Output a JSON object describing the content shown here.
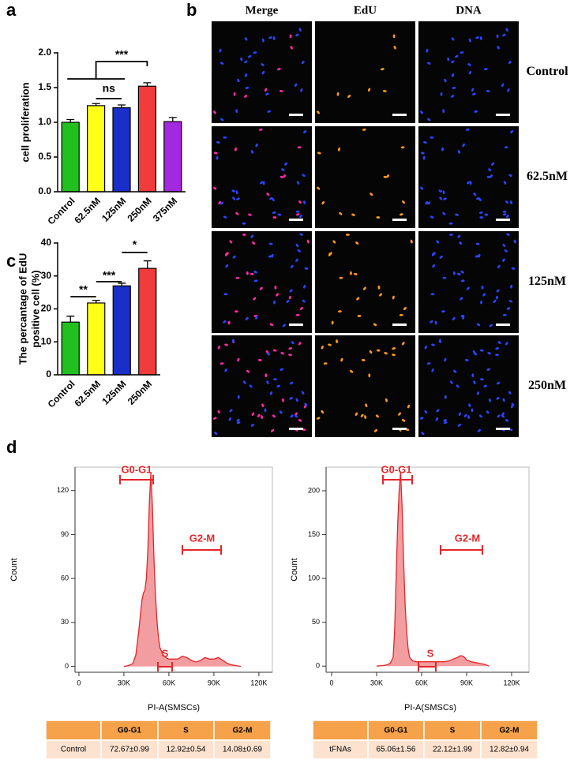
{
  "panel_labels": [
    "a",
    "b",
    "c",
    "d"
  ],
  "chart_data": [
    {
      "type": "bar",
      "ylabel": "cell proliferation",
      "categories": [
        "Control",
        "62.5nM",
        "125nM",
        "250nM",
        "375nM"
      ],
      "values": [
        1.0,
        1.24,
        1.21,
        1.52,
        1.01
      ],
      "errors": [
        0.04,
        0.03,
        0.04,
        0.05,
        0.06
      ],
      "colors": [
        "#22c01f",
        "#ffff17",
        "#1a2fc9",
        "#f23b3b",
        "#a329e0"
      ],
      "ylim": [
        0,
        2
      ],
      "yticks": [
        {
          "value": 0,
          "label": "0.0"
        },
        0.5,
        {
          "value": 1,
          "label": "1.0"
        },
        1.5,
        {
          "value": 2,
          "label": "2.0"
        }
      ],
      "annotations": [
        "***",
        "ns"
      ]
    },
    {
      "type": "bar",
      "ylabel": [
        "The percantage of EdU",
        "positive cell (%)"
      ],
      "categories": [
        "Control",
        "62.5nM",
        "125nM",
        "250nM"
      ],
      "values": [
        16,
        21.8,
        27,
        32.3
      ],
      "errors": [
        1.8,
        0.8,
        0.8,
        2.3
      ],
      "colors": [
        "#22c01f",
        "#ffff17",
        "#1a2fc9",
        "#f23b3b"
      ],
      "ylim": [
        0,
        40
      ],
      "yticks": [
        0,
        10,
        20,
        30,
        40
      ],
      "annotations": [
        "**",
        "***",
        "*"
      ]
    },
    {
      "type": "area",
      "xlabel": "PI-A(SMSCs)",
      "ylabel": "Count",
      "color": "#e3262a",
      "x": [
        30000,
        33000,
        36000,
        38000,
        40000,
        42000,
        43000,
        44000,
        45000,
        46000,
        47000,
        48000,
        49000,
        50000,
        51000,
        52000,
        53000,
        54000,
        56000,
        58000,
        60000,
        63000,
        66000,
        69000,
        72000,
        75000,
        78000,
        81000,
        84000,
        87000,
        90000,
        93000,
        96000,
        99000,
        102000,
        105000,
        108000
      ],
      "values": [
        0,
        0.5,
        2,
        8,
        25,
        45,
        50,
        52,
        60,
        80,
        112,
        132,
        110,
        75,
        50,
        32,
        20,
        13,
        8,
        6,
        5,
        5,
        5,
        7,
        6,
        4,
        3,
        4,
        6,
        5,
        5,
        6,
        4,
        2,
        1,
        0.5,
        0
      ],
      "xlim": [
        -2600,
        129000
      ],
      "ylim": [
        -4,
        136
      ],
      "xticks": [
        0,
        {
          "value": 30000,
          "label": "30K"
        },
        {
          "value": 60000,
          "label": "60K"
        },
        {
          "value": 90000,
          "label": "90K"
        },
        {
          "value": 120000,
          "label": "120K"
        }
      ],
      "yticks": [
        0,
        30,
        60,
        90,
        120
      ],
      "annotations": [
        "G0-G1",
        "S",
        "G2-M"
      ]
    },
    {
      "type": "area",
      "xlabel": "PI-A(SMSCs)",
      "ylabel": "Count",
      "color": "#e3262a",
      "x": [
        30000,
        36000,
        39000,
        41000,
        42000,
        43000,
        44000,
        45000,
        46000,
        47000,
        48000,
        49000,
        50000,
        51000,
        52000,
        54000,
        57000,
        60000,
        63000,
        66000,
        69000,
        72000,
        75000,
        78000,
        81000,
        84000,
        86000,
        88000,
        90000,
        93000,
        96000,
        99000,
        102000,
        105000
      ],
      "values": [
        0,
        1,
        3,
        10,
        40,
        100,
        160,
        200,
        222,
        180,
        120,
        70,
        40,
        20,
        10,
        6,
        5,
        5,
        5,
        5,
        5,
        5,
        5,
        6,
        8,
        10,
        12,
        11,
        7,
        5,
        4,
        3,
        2,
        0
      ],
      "xlim": [
        -3700,
        131600
      ],
      "ylim": [
        -7,
        227
      ],
      "xticks": [
        0,
        {
          "value": 30000,
          "label": "30K"
        },
        {
          "value": 60000,
          "label": "60K"
        },
        {
          "value": 90000,
          "label": "90K"
        },
        {
          "value": 120000,
          "label": "120K"
        }
      ],
      "yticks": [
        0,
        50,
        100,
        150,
        200
      ],
      "annotations": [
        "G0-G1",
        "S",
        "G2-M"
      ]
    }
  ],
  "microscopy": {
    "columns": [
      "Merge",
      "EdU",
      "DNA"
    ],
    "rows": [
      "Control",
      "62.5nM",
      "125nM",
      "250nM"
    ]
  },
  "tables": [
    {
      "header": [
        "G0-G1",
        "S",
        "G2-M"
      ],
      "rows": [
        [
          "Control",
          "72.67±0.99",
          "12.92±0.54",
          "14.08±0.69"
        ]
      ]
    },
    {
      "header": [
        "G0-G1",
        "S",
        "G2-M"
      ],
      "rows": [
        [
          "tFNAs",
          "65.06±1.56",
          "22.12±1.99",
          "12.82±0.94"
        ]
      ]
    }
  ]
}
